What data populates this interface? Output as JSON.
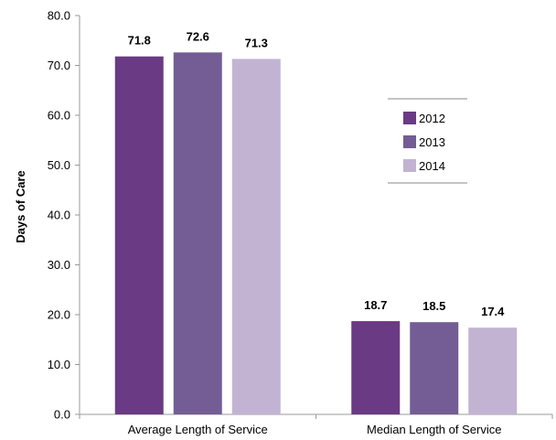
{
  "chart_data": {
    "type": "bar",
    "categories": [
      "Average Length of Service",
      "Median Length of Service"
    ],
    "series": [
      {
        "name": "2012",
        "values": [
          71.8,
          18.7
        ],
        "color": "#6b3a84"
      },
      {
        "name": "2013",
        "values": [
          72.6,
          18.5
        ],
        "color": "#735d94"
      },
      {
        "name": "2014",
        "values": [
          71.3,
          17.4
        ],
        "color": "#c3b3d3"
      }
    ],
    "ylabel": "Days of Care",
    "xlabel": "",
    "ylim": [
      0,
      80
    ],
    "yticks": [
      "0.0",
      "10.0",
      "20.0",
      "30.0",
      "40.0",
      "50.0",
      "60.0",
      "70.0",
      "80.0"
    ],
    "grid": false,
    "legend_position": "right",
    "data_labels": [
      [
        "71.8",
        "72.6",
        "71.3"
      ],
      [
        "18.7",
        "18.5",
        "17.4"
      ]
    ]
  }
}
